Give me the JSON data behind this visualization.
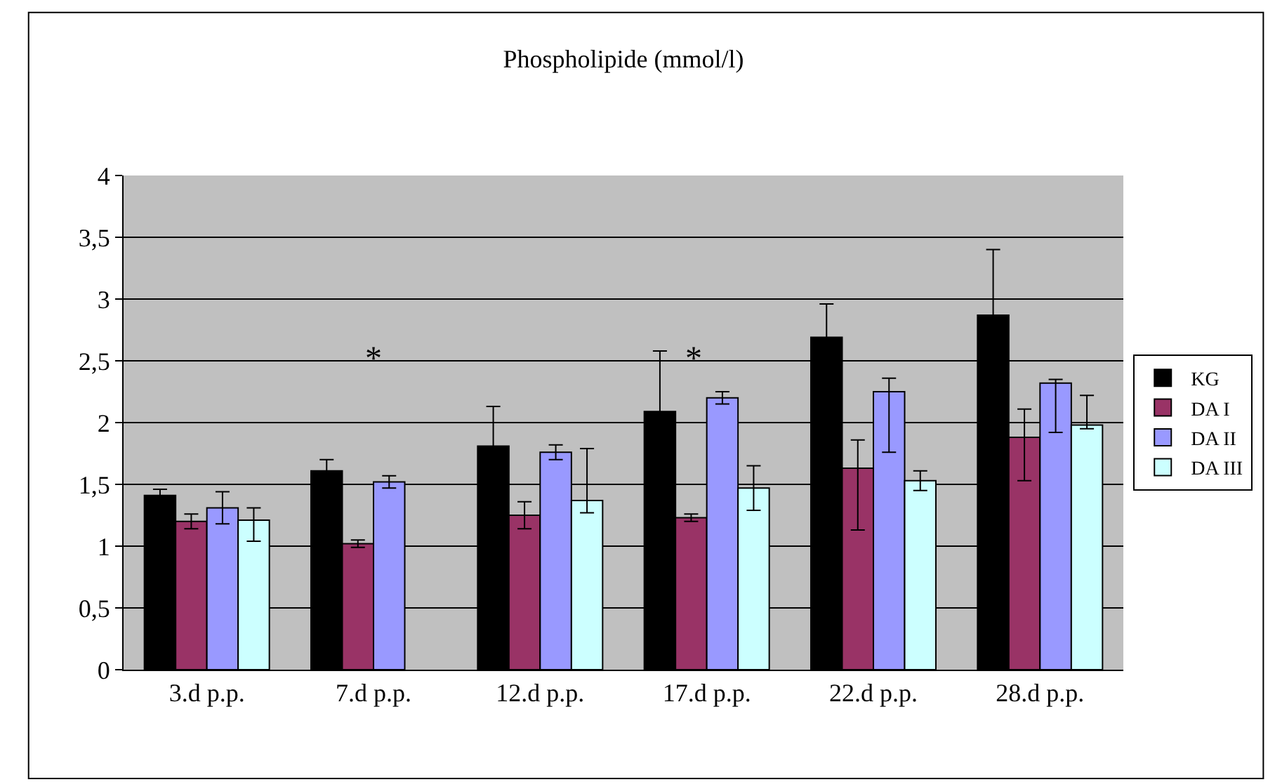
{
  "chart_data": {
    "type": "bar",
    "title": "Phospholipide (mmol/l)",
    "categories": [
      "3.d p.p.",
      "7.d p.p.",
      "12.d p.p.",
      "17.d p.p.",
      "22.d p.p.",
      "28.d p.p."
    ],
    "series": [
      {
        "name": "KG",
        "color": "#000000",
        "values": [
          1.41,
          1.61,
          1.81,
          2.09,
          2.69,
          2.87
        ],
        "errors": [
          0.05,
          0.09,
          0.32,
          0.49,
          0.27,
          0.53
        ]
      },
      {
        "name": "DA I",
        "color": "#993366",
        "values": [
          1.2,
          1.02,
          1.25,
          1.23,
          1.63,
          1.88
        ],
        "errors": [
          0.06,
          0.03,
          0.11,
          0.03,
          [
            1.13,
            1.86
          ],
          [
            1.53,
            2.11
          ]
        ]
      },
      {
        "name": "DA II",
        "color": "#9999ff",
        "values": [
          1.31,
          1.52,
          1.76,
          2.2,
          2.25,
          2.32
        ],
        "errors": [
          0.13,
          0.05,
          0.06,
          0.05,
          [
            1.76,
            2.36
          ],
          [
            1.92,
            2.35
          ]
        ]
      },
      {
        "name": "DA III",
        "color": "#ccffff",
        "values": [
          1.21,
          null,
          1.37,
          1.47,
          1.53,
          1.98
        ],
        "errors": [
          [
            1.04,
            1.31
          ],
          null,
          [
            1.27,
            1.79
          ],
          0.18,
          0.08,
          [
            1.95,
            2.22
          ]
        ]
      }
    ],
    "annotations": [
      "*",
      "*"
    ],
    "ylim": [
      0,
      4
    ],
    "yticks": [
      0,
      {
        "value": 0.5,
        "label": "0,5"
      },
      1,
      {
        "value": 1.5,
        "label": "1,5"
      },
      2,
      {
        "value": 2.5,
        "label": "2,5"
      },
      3,
      {
        "value": 3.5,
        "label": "3,5"
      },
      4
    ],
    "grid": "y",
    "legend": "right"
  }
}
